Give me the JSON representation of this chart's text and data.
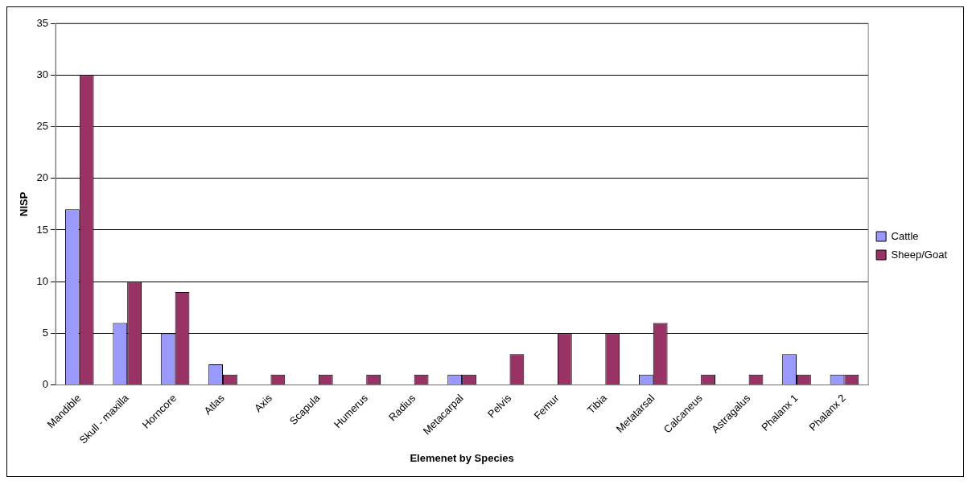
{
  "chart_data": {
    "type": "bar",
    "xlabel": "Elemenet by Species",
    "ylabel": "NISP",
    "categories": [
      "Mandible",
      "Skull - maxilla",
      "Horncore",
      "Atlas",
      "Axis",
      "Scapula",
      "Humerus",
      "Radius",
      "Metacarpal",
      "Pelvis",
      "Femur",
      "Tibia",
      "Metatarsal",
      "Calcaneus",
      "Astragalus",
      "Phalanx 1",
      "Phalanx 2"
    ],
    "series": [
      {
        "name": "Cattle",
        "color": "#9999ff",
        "values": [
          17,
          6,
          5,
          2,
          0,
          0,
          0,
          0,
          1,
          0,
          0,
          0,
          1,
          0,
          0,
          3,
          1
        ]
      },
      {
        "name": "Sheep/Goat",
        "color": "#993366",
        "values": [
          30,
          10,
          9,
          1,
          1,
          1,
          1,
          1,
          1,
          3,
          5,
          5,
          6,
          1,
          1,
          1,
          1
        ]
      }
    ],
    "ylim": [
      0,
      35
    ],
    "yticks": [
      0,
      5,
      10,
      15,
      20,
      25,
      30,
      35
    ],
    "grid": "y",
    "legend": "right"
  }
}
